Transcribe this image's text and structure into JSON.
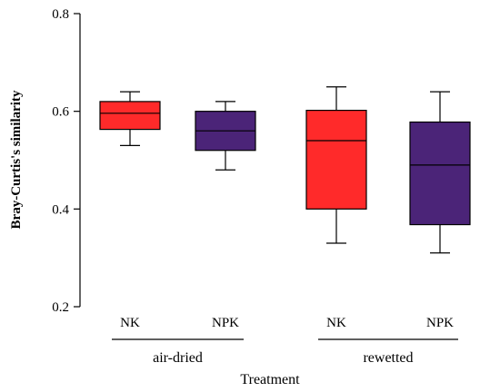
{
  "chart_data": {
    "type": "boxplot",
    "title": "",
    "xlabel": "Treatment",
    "ylabel": "Bray-Curtis's similarity",
    "ylim": [
      0.2,
      0.8
    ],
    "yticks": [
      "0.2",
      "0.4",
      "0.6",
      "0.8"
    ],
    "ytick_values": [
      0.2,
      0.4,
      0.6,
      0.8
    ],
    "groups": [
      {
        "label": "air-dried",
        "members": [
          0,
          1
        ]
      },
      {
        "label": "rewetted",
        "members": [
          2,
          3
        ]
      }
    ],
    "boxes": [
      {
        "label": "NK",
        "color": "#ff2a2a",
        "min": 0.53,
        "q1": 0.563,
        "median": 0.596,
        "q3": 0.62,
        "max": 0.64
      },
      {
        "label": "NPK",
        "color": "#4b2478",
        "min": 0.48,
        "q1": 0.52,
        "median": 0.56,
        "q3": 0.6,
        "max": 0.62
      },
      {
        "label": "NK",
        "color": "#ff2a2a",
        "min": 0.33,
        "q1": 0.4,
        "median": 0.54,
        "q3": 0.602,
        "max": 0.65
      },
      {
        "label": "NPK",
        "color": "#4b2478",
        "min": 0.31,
        "q1": 0.368,
        "median": 0.49,
        "q3": 0.578,
        "max": 0.64
      }
    ]
  }
}
